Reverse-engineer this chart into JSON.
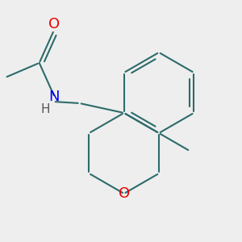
{
  "bg_color": "#eeeeee",
  "bond_color": "#2d6b6b",
  "N_color": "#0000ee",
  "O_color": "#ee0000",
  "H_color": "#555555",
  "line_width": 1.5,
  "font_size": 13,
  "figsize": [
    3.0,
    3.0
  ],
  "dpi": 100,
  "xlim": [
    0,
    300
  ],
  "ylim": [
    0,
    300
  ]
}
